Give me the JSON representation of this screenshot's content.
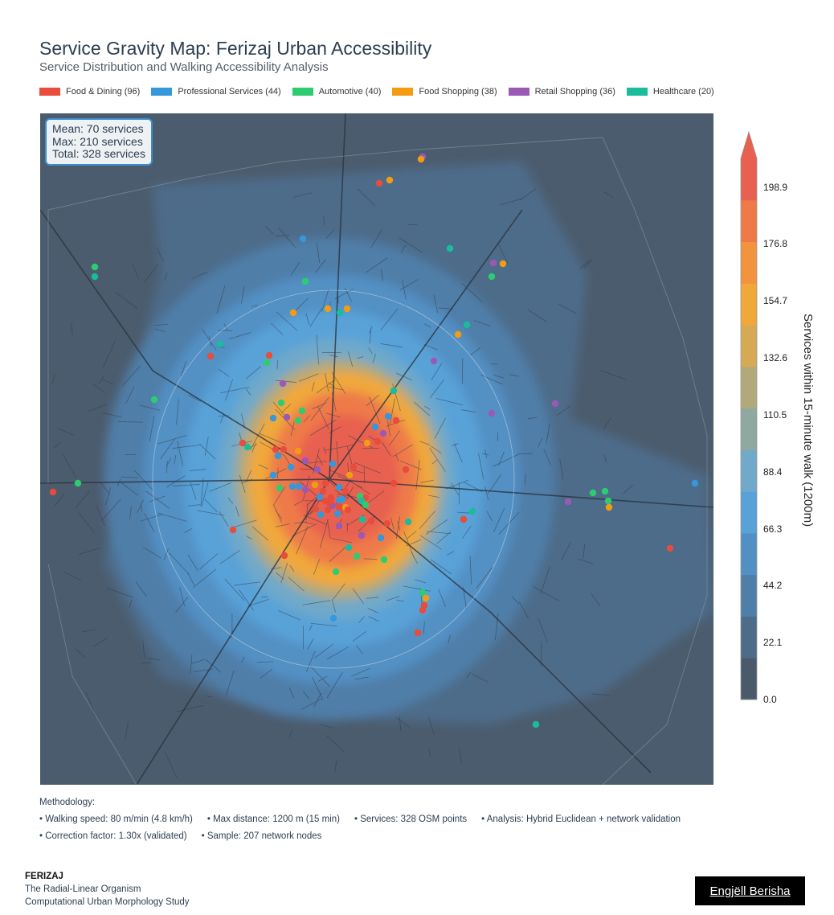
{
  "title": "Service Gravity Map: Ferizaj Urban Accessibility",
  "subtitle": "Service Distribution and Walking Accessibility Analysis",
  "legend": [
    {
      "label": "Food & Dining (96)",
      "color": "#e74c3c"
    },
    {
      "label": "Professional Services (44)",
      "color": "#3498db"
    },
    {
      "label": "Automotive (40)",
      "color": "#2ecc71"
    },
    {
      "label": "Food Shopping (38)",
      "color": "#f39c12"
    },
    {
      "label": "Retail Shopping (36)",
      "color": "#9b59b6"
    },
    {
      "label": "Healthcare (20)",
      "color": "#1abc9c"
    }
  ],
  "stats": {
    "mean": "Mean: 70 services",
    "max": "Max: 210 services",
    "total": "Total: 328 services"
  },
  "colorbar": {
    "label": "Services within 15-minute walk (1200m)",
    "ticks": [
      "0.0",
      "22.1",
      "44.2",
      "66.3",
      "88.4",
      "110.5",
      "132.6",
      "154.7",
      "176.8",
      "198.9"
    ],
    "range": [
      0,
      210
    ],
    "colors": [
      "#4a5a6b",
      "#4d6c8a",
      "#4f7ea8",
      "#5290c4",
      "#58a2d8",
      "#70a9c9",
      "#8fa9a0",
      "#b2a97a",
      "#d6aa55",
      "#f0a83a",
      "#f29340",
      "#ee7a48",
      "#e8604f"
    ]
  },
  "methodology": {
    "heading": "Methodology:",
    "row1": [
      "• Walking speed: 80 m/min (4.8 km/h)",
      "• Max distance: 1200 m (15 min)",
      "• Services: 328 OSM points",
      "• Analysis: Hybrid Euclidean + network validation"
    ],
    "row2": [
      "• Correction factor: 1.30x (validated)",
      "• Sample: 207 network nodes"
    ]
  },
  "brand": {
    "name": "FERIZAJ",
    "line1": "The Radial-Linear Organism",
    "line2": "Computational Urban Morphology Study"
  },
  "author": "Engjëll Berisha"
}
